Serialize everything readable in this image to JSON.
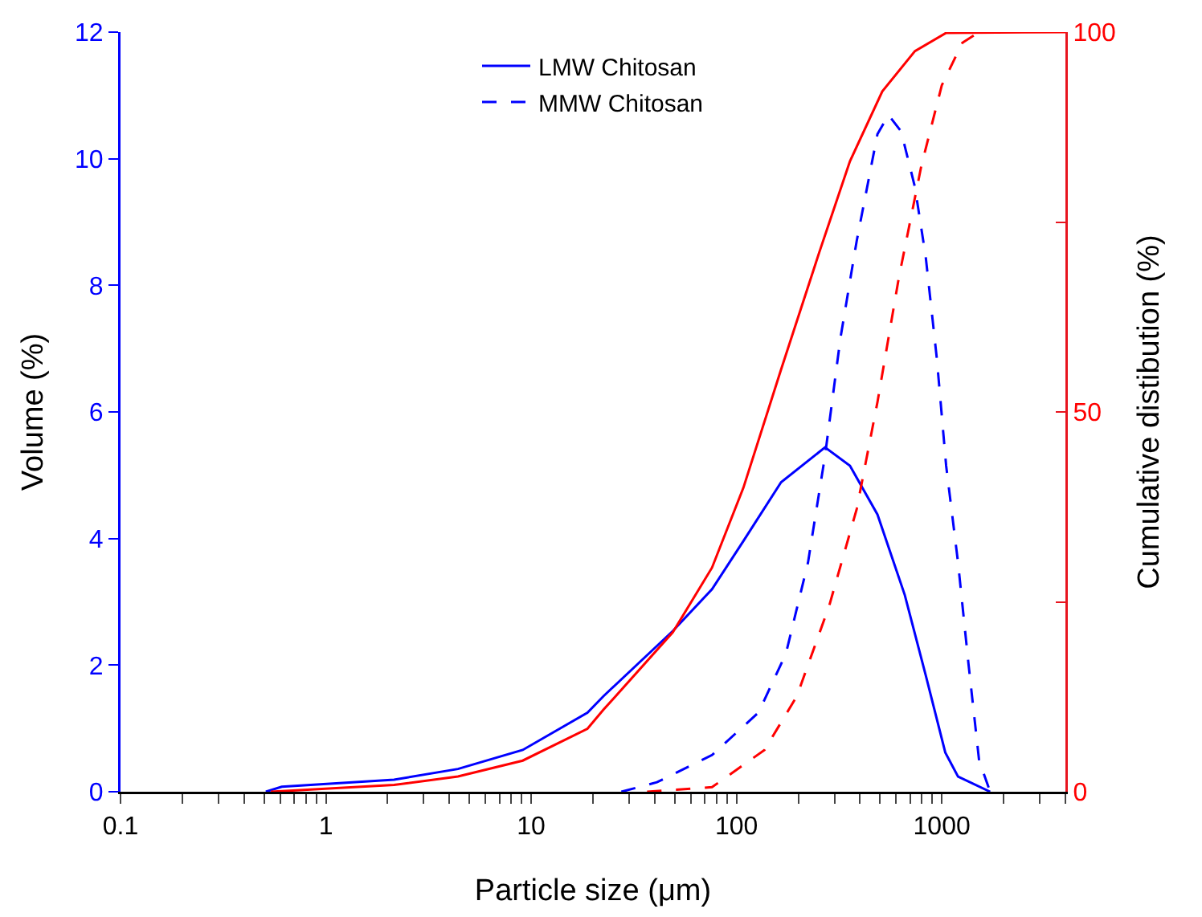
{
  "chart_data": {
    "type": "line",
    "xlabel": "Particle size (μm)",
    "ylabel": "Volume (%)",
    "y2label": "Cumulative distibution (%)",
    "log": "x",
    "grid": false,
    "legend": "top",
    "marker": "none",
    "xlim": [
      0.1,
      4000
    ],
    "xticks": [
      0.1,
      {
        "value": 0.2,
        "label": null
      },
      {
        "value": 0.3,
        "label": null
      },
      {
        "value": 0.4,
        "label": null
      },
      {
        "value": 0.5,
        "label": null
      },
      {
        "value": 0.6,
        "label": null
      },
      {
        "value": 0.7,
        "label": null
      },
      {
        "value": 0.8,
        "label": null
      },
      {
        "value": 0.9,
        "label": null
      },
      1,
      {
        "value": 2,
        "label": null
      },
      {
        "value": 3,
        "label": null
      },
      {
        "value": 4,
        "label": null
      },
      {
        "value": 5,
        "label": null
      },
      {
        "value": 6,
        "label": null
      },
      {
        "value": 7,
        "label": null
      },
      {
        "value": 8,
        "label": null
      },
      {
        "value": 9,
        "label": null
      },
      10,
      {
        "value": 20,
        "label": null
      },
      {
        "value": 30,
        "label": null
      },
      {
        "value": 40,
        "label": null
      },
      {
        "value": 50,
        "label": null
      },
      {
        "value": 60,
        "label": null
      },
      {
        "value": 70,
        "label": null
      },
      {
        "value": 80,
        "label": null
      },
      {
        "value": 90,
        "label": null
      },
      100,
      {
        "value": 200,
        "label": null
      },
      {
        "value": 300,
        "label": null
      },
      {
        "value": 400,
        "label": null
      },
      {
        "value": 500,
        "label": null
      },
      {
        "value": 600,
        "label": null
      },
      {
        "value": 700,
        "label": null
      },
      {
        "value": 800,
        "label": null
      },
      {
        "value": 900,
        "label": null
      },
      1000,
      {
        "value": 2000,
        "label": null
      },
      {
        "value": 3000,
        "label": null
      },
      {
        "value": 4000,
        "label": null
      }
    ],
    "ylim": [
      0,
      12
    ],
    "yticks": [
      0,
      2,
      4,
      6,
      8,
      10,
      12
    ],
    "y2lim": [
      0,
      100
    ],
    "y2ticks": [
      0,
      {
        "value": 25,
        "label": null
      },
      50,
      {
        "value": 75,
        "label": null
      },
      100
    ],
    "series": [
      {
        "name": "LMW Chitosan",
        "color": "#0000ff",
        "line_style": "solid",
        "x": [
          0.51,
          0.61,
          2.15,
          4.4,
          9.1,
          18.8,
          22.5,
          49,
          76,
          108,
          165,
          270,
          357,
          486,
          660,
          835,
          1040,
          1200,
          1720
        ],
        "values": [
          0,
          0.08,
          0.19,
          0.36,
          0.66,
          1.25,
          1.51,
          2.54,
          3.2,
          3.96,
          4.89,
          5.44,
          5.15,
          4.38,
          3.11,
          1.84,
          0.62,
          0.24,
          0
        ]
      },
      {
        "name": "MMW Chitosan",
        "color": "#0000ff",
        "line_style": "dashed",
        "x": [
          27.5,
          41,
          76,
          128,
          174,
          223,
          270,
          321,
          385,
          486,
          550,
          634,
          740,
          835,
          946,
          1050,
          1200,
          1350,
          1520,
          1720
        ],
        "values": [
          0,
          0.15,
          0.58,
          1.25,
          2.18,
          3.62,
          5.31,
          7.17,
          8.7,
          10.39,
          10.69,
          10.43,
          9.55,
          8.45,
          6.84,
          5.15,
          3.62,
          2.01,
          0.49,
          0
        ]
      },
      {
        "color": "#ff0000",
        "line_style": "solid",
        "axis": "y2",
        "x": [
          0.54,
          2.15,
          4.4,
          9.1,
          18.8,
          22.5,
          49,
          76,
          108,
          165,
          253,
          357,
          513,
          740,
          1050,
          4000
        ],
        "values": [
          0,
          0.9,
          2.0,
          4.1,
          8.3,
          10.8,
          21,
          29.5,
          40,
          55.6,
          71,
          83,
          92.2,
          97.5,
          99.9,
          100
        ]
      },
      {
        "color": "#ff0000",
        "line_style": "dashed",
        "axis": "y2",
        "x": [
          36.7,
          76,
          137,
          197,
          283,
          385,
          486,
          617,
          795,
          1000,
          1260,
          1520
        ],
        "values": [
          0,
          0.6,
          5.5,
          12.6,
          24.5,
          37.2,
          51.3,
          67.6,
          82.4,
          93,
          98.6,
          100
        ]
      }
    ]
  }
}
